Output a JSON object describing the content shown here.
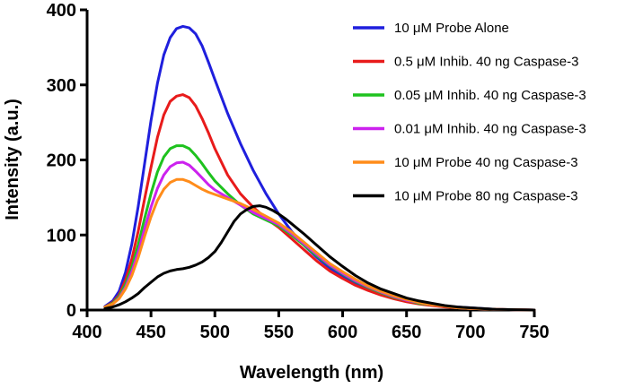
{
  "chart_data": {
    "type": "line",
    "title": "",
    "xlabel": "Wavelength (nm)",
    "ylabel": "Intensity (a.u.)",
    "xlim": [
      400,
      750
    ],
    "ylim": [
      0,
      400
    ],
    "x_ticks": [
      400,
      450,
      500,
      550,
      600,
      650,
      700,
      750
    ],
    "y_ticks": [
      0,
      100,
      200,
      300,
      400
    ],
    "legend_position": "top-right",
    "grid": false,
    "series": [
      {
        "name": "10 μM Probe Alone",
        "color": "#1f1fdd",
        "x": [
          414,
          420,
          425,
          430,
          435,
          440,
          445,
          450,
          455,
          460,
          465,
          470,
          475,
          480,
          485,
          490,
          495,
          500,
          510,
          520,
          530,
          540,
          550,
          560,
          570,
          580,
          590,
          600,
          610,
          620,
          630,
          640,
          650,
          660,
          670,
          680,
          690,
          700,
          720,
          750
        ],
        "y": [
          5,
          12,
          25,
          50,
          88,
          138,
          195,
          252,
          302,
          340,
          363,
          375,
          378,
          376,
          368,
          352,
          330,
          307,
          262,
          222,
          186,
          155,
          128,
          105,
          86,
          70,
          56,
          45,
          36,
          28,
          22,
          17,
          13,
          10,
          7,
          5,
          4,
          3,
          1,
          0
        ]
      },
      {
        "name": "0.5 μM Inhib. 40 ng Caspase-3",
        "color": "#e81b1b",
        "x": [
          414,
          420,
          425,
          430,
          435,
          440,
          445,
          450,
          455,
          460,
          465,
          470,
          475,
          480,
          485,
          490,
          495,
          500,
          510,
          520,
          530,
          540,
          550,
          560,
          570,
          580,
          590,
          600,
          610,
          620,
          630,
          640,
          650,
          660,
          670,
          680,
          690,
          700,
          720,
          750
        ],
        "y": [
          4,
          10,
          20,
          40,
          68,
          105,
          148,
          190,
          230,
          260,
          278,
          285,
          287,
          283,
          272,
          255,
          236,
          215,
          180,
          155,
          137,
          122,
          110,
          95,
          80,
          65,
          52,
          42,
          33,
          26,
          20,
          15,
          11,
          8,
          6,
          4,
          3,
          2,
          1,
          0
        ]
      },
      {
        "name": "0.05 μM Inhib. 40 ng Caspase-3",
        "color": "#1ec21e",
        "x": [
          414,
          420,
          425,
          430,
          435,
          440,
          445,
          450,
          455,
          460,
          465,
          470,
          475,
          480,
          485,
          490,
          495,
          500,
          510,
          520,
          530,
          540,
          550,
          560,
          570,
          580,
          590,
          600,
          610,
          620,
          630,
          640,
          650,
          660,
          670,
          680,
          690,
          700,
          720,
          750
        ],
        "y": [
          4,
          9,
          18,
          34,
          57,
          87,
          122,
          155,
          184,
          204,
          215,
          219,
          219,
          215,
          206,
          195,
          183,
          172,
          155,
          140,
          128,
          120,
          112,
          100,
          86,
          72,
          59,
          48,
          38,
          30,
          23,
          17,
          13,
          9,
          7,
          5,
          3,
          2,
          1,
          0
        ]
      },
      {
        "name": "0.01 μM Inhib. 40 ng Caspase-3",
        "color": "#cc22ee",
        "x": [
          414,
          420,
          425,
          430,
          435,
          440,
          445,
          450,
          455,
          460,
          465,
          470,
          475,
          480,
          485,
          490,
          495,
          500,
          510,
          520,
          530,
          540,
          550,
          560,
          570,
          580,
          590,
          600,
          610,
          620,
          630,
          640,
          650,
          660,
          670,
          680,
          690,
          700,
          720,
          750
        ],
        "y": [
          4,
          8,
          16,
          30,
          51,
          77,
          108,
          137,
          162,
          180,
          191,
          196,
          197,
          193,
          185,
          176,
          167,
          160,
          150,
          140,
          130,
          122,
          114,
          102,
          88,
          74,
          60,
          49,
          39,
          31,
          24,
          18,
          13,
          10,
          7,
          5,
          3,
          2,
          1,
          0
        ]
      },
      {
        "name": "10 μM Probe 40 ng Caspase-3",
        "color": "#ff8c1a",
        "x": [
          414,
          420,
          425,
          430,
          435,
          440,
          445,
          450,
          455,
          460,
          465,
          470,
          475,
          480,
          485,
          490,
          495,
          500,
          510,
          520,
          530,
          540,
          550,
          560,
          570,
          580,
          590,
          600,
          610,
          620,
          630,
          640,
          650,
          660,
          670,
          680,
          690,
          700,
          720,
          750
        ],
        "y": [
          4,
          8,
          15,
          28,
          46,
          70,
          98,
          124,
          146,
          161,
          170,
          174,
          174,
          171,
          166,
          161,
          157,
          154,
          148,
          142,
          134,
          125,
          116,
          104,
          90,
          76,
          62,
          51,
          41,
          32,
          25,
          19,
          14,
          10,
          7,
          5,
          3,
          2,
          1,
          0
        ]
      },
      {
        "name": "10 μM Probe 80 ng Caspase-3",
        "color": "#000000",
        "x": [
          414,
          420,
          425,
          430,
          435,
          440,
          445,
          450,
          455,
          460,
          465,
          470,
          475,
          480,
          485,
          490,
          495,
          500,
          505,
          510,
          515,
          520,
          525,
          530,
          535,
          540,
          545,
          550,
          555,
          560,
          570,
          580,
          590,
          600,
          610,
          620,
          630,
          640,
          650,
          660,
          670,
          680,
          690,
          700,
          720,
          750
        ],
        "y": [
          2,
          4,
          7,
          11,
          16,
          22,
          30,
          37,
          44,
          49,
          52,
          54,
          55,
          57,
          60,
          64,
          70,
          78,
          90,
          104,
          118,
          128,
          134,
          138,
          139,
          137,
          133,
          128,
          122,
          115,
          101,
          86,
          71,
          58,
          46,
          36,
          28,
          22,
          16,
          12,
          9,
          6,
          4,
          3,
          1,
          0
        ]
      }
    ]
  }
}
